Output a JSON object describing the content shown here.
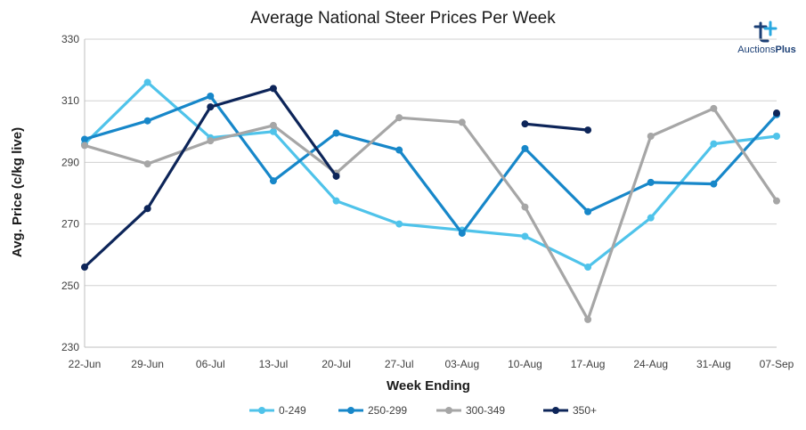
{
  "chart_data": {
    "type": "line",
    "title": "Average National Steer Prices Per Week",
    "xlabel": "Week Ending",
    "ylabel": "Avg. Price (c/kg live)",
    "categories": [
      "22-Jun",
      "29-Jun",
      "06-Jul",
      "13-Jul",
      "20-Jul",
      "27-Jul",
      "03-Aug",
      "10-Aug",
      "17-Aug",
      "24-Aug",
      "31-Aug",
      "07-Sep"
    ],
    "ylim": [
      230,
      330
    ],
    "yticks": [
      230,
      250,
      270,
      290,
      310,
      330
    ],
    "grid": true,
    "legend_position": "bottom",
    "series": [
      {
        "name": "0-249",
        "color": "#4fc3ea",
        "values": [
          296,
          316,
          298,
          300,
          277.5,
          270,
          268,
          266,
          256,
          272,
          296,
          298.5
        ]
      },
      {
        "name": "250-299",
        "color": "#1787c9",
        "values": [
          297.5,
          303.5,
          311.5,
          284,
          299.5,
          294,
          267,
          294.5,
          274,
          283.5,
          283,
          305.5
        ]
      },
      {
        "name": "300-349",
        "color": "#a6a6a6",
        "values": [
          295.5,
          289.5,
          297,
          302,
          286.5,
          304.5,
          303,
          275.5,
          239,
          298.5,
          307.5,
          277.5
        ]
      },
      {
        "name": "350+",
        "color": "#0d2559",
        "values": [
          256,
          275,
          308,
          314,
          285.5,
          null,
          null,
          302.5,
          300.5,
          null,
          null,
          306
        ]
      }
    ]
  },
  "logo": {
    "text_main": "Auctions",
    "text_bold": "Plus"
  }
}
